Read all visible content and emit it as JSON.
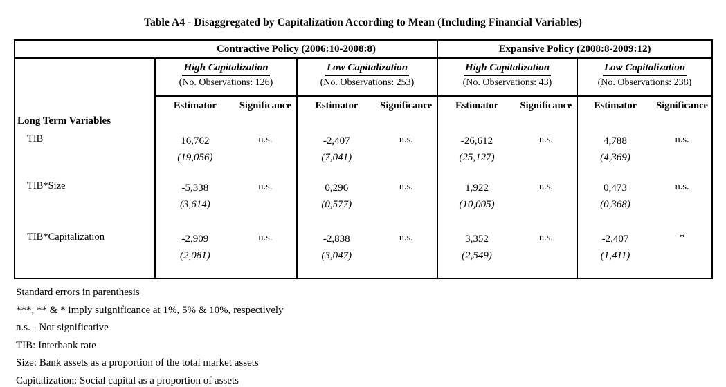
{
  "title": "Table A4 - Disaggregated by Capitalization According to Mean (Including Financial Variables)",
  "policies": [
    {
      "label": "Contractive Policy (2006:10-2008:8)"
    },
    {
      "label": "Expansive Policy (2008:8-2009:12)"
    }
  ],
  "columns": [
    {
      "cap": "High Capitalization",
      "obs": "(No. Observations: 126)"
    },
    {
      "cap": "Low Capitalization",
      "obs": "(No. Observations: 253)"
    },
    {
      "cap": "High Capitalization",
      "obs": "(No. Observations: 43)"
    },
    {
      "cap": "Low Capitalization",
      "obs": "(No. Observations: 238)"
    }
  ],
  "subheaders": {
    "estimator": "Estimator",
    "significance": "Significance"
  },
  "section_label": "Long Term Variables",
  "rows": [
    {
      "label": "TIB",
      "cells": [
        {
          "estimator": "16,762",
          "se": "(19,056)",
          "significance": "n.s."
        },
        {
          "estimator": "-2,407",
          "se": "(7,041)",
          "significance": "n.s."
        },
        {
          "estimator": "-26,612",
          "se": "(25,127)",
          "significance": "n.s."
        },
        {
          "estimator": "4,788",
          "se": "(4,369)",
          "significance": "n.s."
        }
      ]
    },
    {
      "label": "TIB*Size",
      "cells": [
        {
          "estimator": "-5,338",
          "se": "(3,614)",
          "significance": "n.s."
        },
        {
          "estimator": "0,296",
          "se": "(0,577)",
          "significance": "n.s."
        },
        {
          "estimator": "1,922",
          "se": "(10,005)",
          "significance": "n.s."
        },
        {
          "estimator": "0,473",
          "se": "(0,368)",
          "significance": "n.s."
        }
      ]
    },
    {
      "label": "TIB*Capitalization",
      "cells": [
        {
          "estimator": "-2,909",
          "se": "(2,081)",
          "significance": "n.s."
        },
        {
          "estimator": "-2,838",
          "se": "(3,047)",
          "significance": "n.s."
        },
        {
          "estimator": "3,352",
          "se": "(2,549)",
          "significance": "n.s."
        },
        {
          "estimator": "-2,407",
          "se": "(1,411)",
          "significance": "*"
        }
      ]
    }
  ],
  "footnotes": [
    "Standard errors in parenthesis",
    "***, ** & * imply suignificance at 1%, 5% & 10%, respectively",
    "n.s. - Not significative",
    "TIB: Interbank rate",
    "Size: Bank assets as a proportion of the total market assets",
    "Capitalization: Social capital as a proportion of assets"
  ],
  "colors": {
    "ink": "#000000",
    "paper": "#ffffff"
  }
}
